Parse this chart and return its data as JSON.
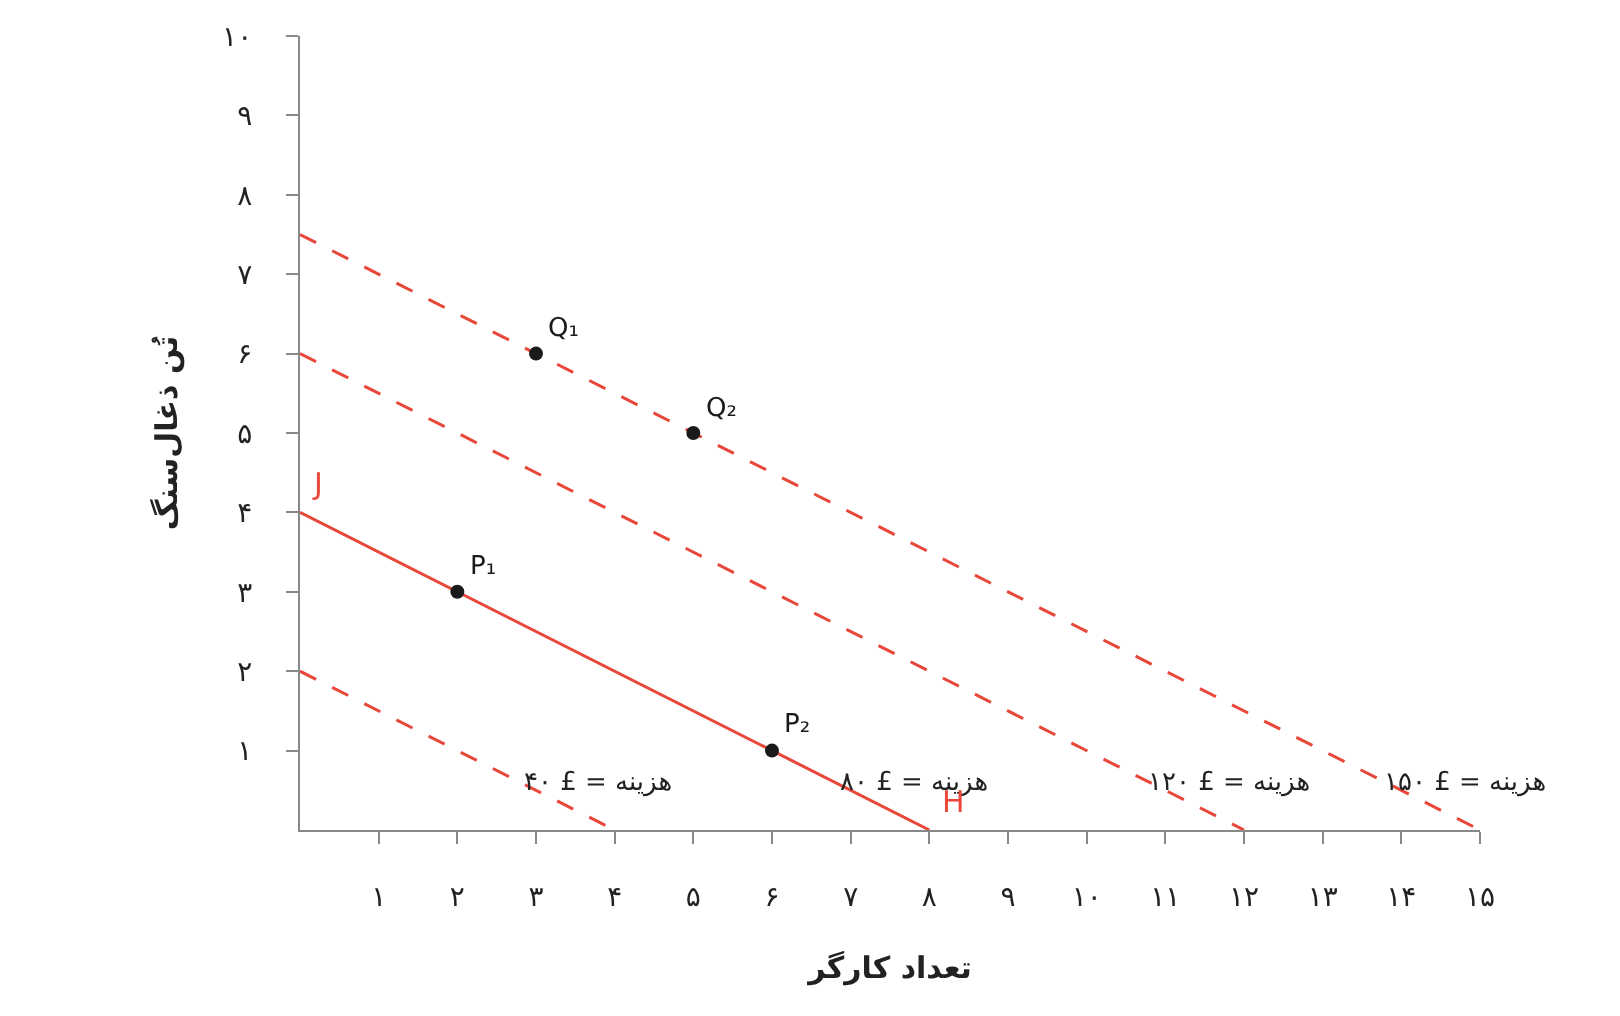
{
  "chart_data": {
    "type": "line",
    "xlabel": "تعداد کارگر",
    "ylabel": "تُن ذغال‌سنگ",
    "series": [
      {
        "name": "هزینه = £ ۴۰",
        "color": "#e8473a",
        "x": [
          0,
          4
        ],
        "values": [
          2,
          0
        ],
        "line_style": "dashed",
        "marker": "none"
      },
      {
        "name": "هزینه = £ ۸۰",
        "color": "#e8473a",
        "x": [
          0,
          8
        ],
        "values": [
          4,
          0
        ],
        "line_style": "solid",
        "marker": "none"
      },
      {
        "name": "هزینه = £ ۱۲۰",
        "color": "#e8473a",
        "x": [
          0,
          12
        ],
        "values": [
          6,
          0
        ],
        "line_style": "dashed",
        "marker": "none"
      },
      {
        "name": "هزینه = £ ۱۵۰",
        "color": "#e8473a",
        "x": [
          0,
          15
        ],
        "values": [
          7.5,
          0
        ],
        "line_style": "dashed",
        "marker": "none"
      },
      {
        "type": "scatter",
        "color": "#1a1a1a",
        "x": [
          2,
          6,
          3,
          5
        ],
        "values": [
          3,
          1,
          6,
          5
        ],
        "marker": "circle"
      }
    ],
    "annotations": [
      {
        "text": "P₁",
        "x": 2,
        "y": 3
      },
      {
        "text": "P₂",
        "x": 6,
        "y": 1
      },
      {
        "text": "Q₁",
        "x": 3,
        "y": 6
      },
      {
        "text": "Q₂",
        "x": 5,
        "y": 5
      },
      {
        "text": "J",
        "x": 0,
        "y": 4
      },
      {
        "text": "H",
        "x": 8,
        "y": 0
      }
    ],
    "xlim": [
      0,
      15
    ],
    "ylim": [
      0,
      10
    ],
    "xticks": [
      {
        "value": 1,
        "label": "۱"
      },
      {
        "value": 2,
        "label": "۲"
      },
      {
        "value": 3,
        "label": "۳"
      },
      {
        "value": 4,
        "label": "۴"
      },
      {
        "value": 5,
        "label": "۵"
      },
      {
        "value": 6,
        "label": "۶"
      },
      {
        "value": 7,
        "label": "۷"
      },
      {
        "value": 8,
        "label": "۸"
      },
      {
        "value": 9,
        "label": "۹"
      },
      {
        "value": 10,
        "label": "۱۰"
      },
      {
        "value": 11,
        "label": "۱۱"
      },
      {
        "value": 12,
        "label": "۱۲"
      },
      {
        "value": 13,
        "label": "۱۳"
      },
      {
        "value": 14,
        "label": "۱۴"
      },
      {
        "value": 15,
        "label": "۱۵"
      }
    ],
    "yticks": [
      {
        "value": 1,
        "label": "۱"
      },
      {
        "value": 2,
        "label": "۲"
      },
      {
        "value": 3,
        "label": "۳"
      },
      {
        "value": 4,
        "label": "۴"
      },
      {
        "value": 5,
        "label": "۵"
      },
      {
        "value": 6,
        "label": "۶"
      },
      {
        "value": 7,
        "label": "۷"
      },
      {
        "value": 8,
        "label": "۸"
      },
      {
        "value": 9,
        "label": "۹"
      },
      {
        "value": 10,
        "label": "۱۰"
      }
    ],
    "legend": false
  }
}
